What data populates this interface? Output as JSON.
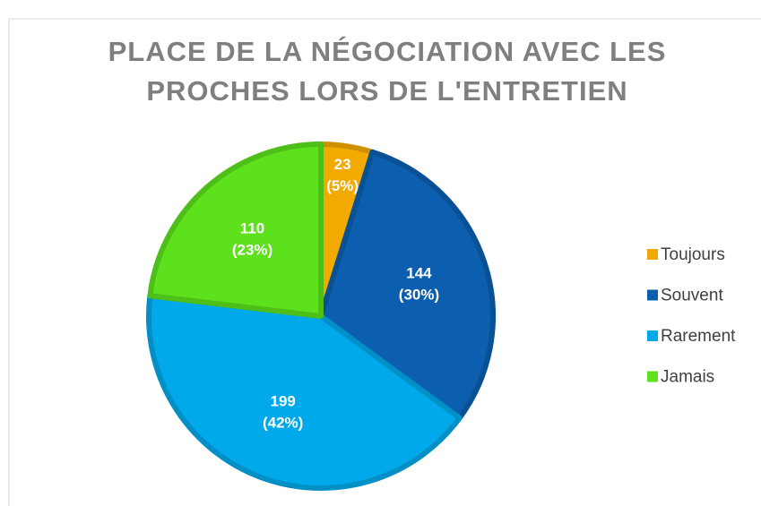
{
  "chart_data": {
    "type": "pie",
    "title": [
      "PLACE DE LA NÉGOCIATION AVEC LES",
      "PROCHES LORS DE L'ENTRETIEN"
    ],
    "categories": [
      "Toujours",
      "Souvent",
      "Rarement",
      "Jamais"
    ],
    "values": [
      23,
      144,
      199,
      110
    ],
    "percent_values": [
      5,
      30,
      42,
      23
    ],
    "percent_labels": [
      "(5%)",
      "(30%)",
      "(42%)",
      "(23%)"
    ],
    "colors": [
      "#f2a900",
      "#0b5fae",
      "#00a9e9",
      "#5ce11c"
    ],
    "legend": "right"
  }
}
